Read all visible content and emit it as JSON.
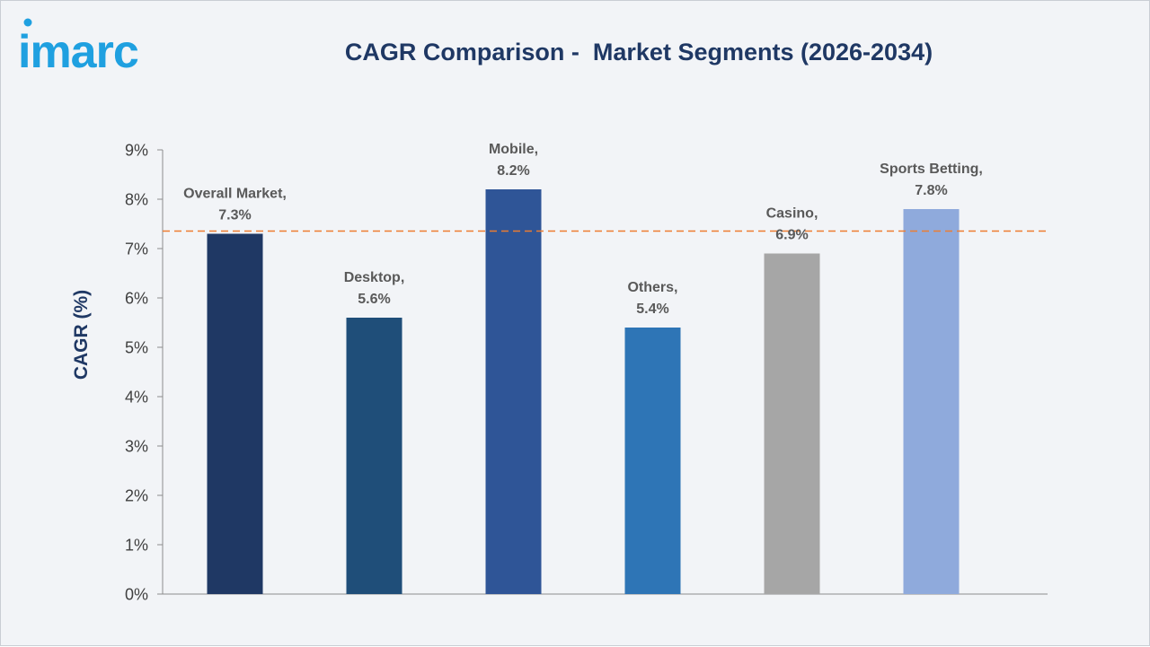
{
  "brand": {
    "logo_text": "imarc",
    "logo_color": "#1fa0e0"
  },
  "chart_data": {
    "type": "bar",
    "title": "CAGR Comparison -  Market Segments (2026-2034)",
    "xlabel": "",
    "ylabel": "CAGR (%)",
    "ylim": [
      0,
      9
    ],
    "yticks": [
      0,
      1,
      2,
      3,
      4,
      5,
      6,
      7,
      8,
      9
    ],
    "ytick_format": "{v}%",
    "categories": [
      "Overall Market",
      "Desktop",
      "Mobile",
      "Others",
      "Casino",
      "Sports Betting"
    ],
    "values": [
      7.3,
      5.6,
      8.2,
      5.4,
      6.9,
      7.8
    ],
    "data_labels": [
      "7.3%",
      "5.6%",
      "8.2%",
      "5.4%",
      "6.9%",
      "7.8%"
    ],
    "colors": [
      "#1f3864",
      "#1f4e79",
      "#2f5597",
      "#2e75b6",
      "#a6a6a6",
      "#8faadc"
    ],
    "reference_line": {
      "value": 7.3,
      "style": "dashed",
      "color": "#ed7d31"
    },
    "grid": false,
    "legend": "none"
  }
}
